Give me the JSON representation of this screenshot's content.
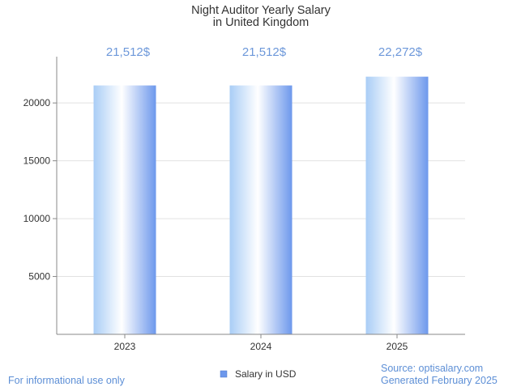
{
  "chart_data": {
    "type": "bar",
    "title_lines": [
      "Night Auditor Yearly Salary",
      "in United Kingdom"
    ],
    "categories": [
      "2023",
      "2024",
      "2025"
    ],
    "series": [
      {
        "name": "Salary in USD",
        "values": [
          21512,
          21512,
          22272
        ],
        "data_labels": [
          "21,512$",
          "21,512$",
          "22,272$"
        ]
      }
    ],
    "ylim": [
      0,
      24000
    ],
    "yticks": [
      5000,
      10000,
      15000,
      20000
    ],
    "ytick_labels": [
      "5000",
      "10000",
      "15000",
      "20000"
    ],
    "grid": true,
    "legend_position": "bottom-center",
    "xlabel": "",
    "ylabel": ""
  },
  "footer": {
    "left": "For informational use only",
    "source": "Source: optisalary.com",
    "generated": "Generated February 2025"
  },
  "colors": {
    "bar_dark": "#6d98ec",
    "bar_light": "#ffffff",
    "bar_mid": "#a9cdf6",
    "label": "#6d98da",
    "grid": "#e2e2e2",
    "axis": "#888888",
    "legend_swatch": "#6d98ec"
  }
}
